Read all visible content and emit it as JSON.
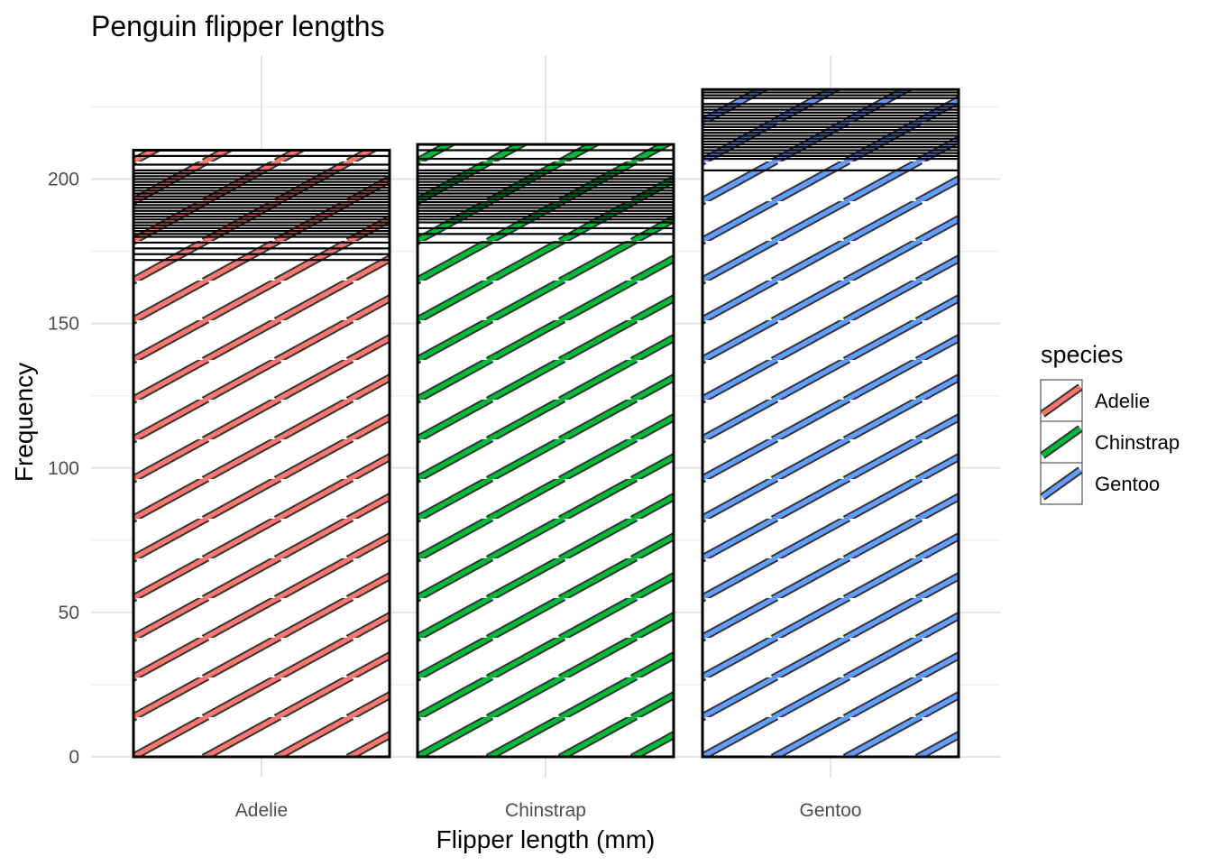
{
  "chart_data": {
    "type": "bar",
    "title": "Penguin flipper lengths",
    "xlabel": "Flipper length (mm)",
    "ylabel": "Frequency",
    "categories": [
      "Adelie",
      "Chinstrap",
      "Gentoo"
    ],
    "values": [
      210,
      212,
      231
    ],
    "ylim": [
      0,
      231
    ],
    "yticks": [
      0,
      50,
      100,
      150,
      200
    ],
    "grid": true,
    "fill_pattern": "stripe",
    "stacked_segments_note": "",
    "segment_boundaries": {
      "Adelie": [
        172,
        174,
        176,
        178,
        180,
        181,
        182,
        183,
        184,
        185,
        186,
        187,
        188,
        189,
        190,
        191,
        192,
        193,
        194,
        195,
        196,
        197,
        198,
        199,
        200,
        201,
        202,
        203,
        205,
        208,
        210
      ],
      "Chinstrap": [
        178,
        181,
        183,
        185,
        186,
        187,
        188,
        189,
        190,
        191,
        192,
        193,
        194,
        195,
        196,
        197,
        198,
        199,
        200,
        201,
        202,
        203,
        205,
        207,
        210,
        212
      ],
      "Gentoo": [
        203,
        207,
        208,
        209,
        210,
        211,
        212,
        213,
        214,
        215,
        216,
        217,
        218,
        219,
        220,
        221,
        222,
        223,
        224,
        225,
        226,
        228,
        229,
        230,
        231
      ]
    },
    "legend": {
      "title": "species",
      "position": "right",
      "entries": [
        "Adelie",
        "Chinstrap",
        "Gentoo"
      ]
    },
    "colors": {
      "Adelie": "#F8766D",
      "Chinstrap": "#00BA38",
      "Gentoo": "#619CFF"
    }
  }
}
